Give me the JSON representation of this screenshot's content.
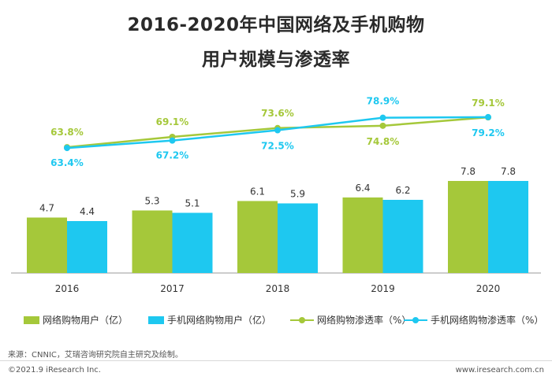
{
  "title_line1": "2016-2020年中国网络及手机购物",
  "title_line2": "用户规模与渗透率",
  "chart_data": {
    "type": "bar",
    "categories": [
      "2016",
      "2017",
      "2018",
      "2019",
      "2020"
    ],
    "series": [
      {
        "name": "网络购物用户（亿）",
        "kind": "bar",
        "color": "#a5c83a",
        "values": [
          4.7,
          5.3,
          6.1,
          6.4,
          7.8
        ],
        "labels": [
          "4.7",
          "5.3",
          "6.1",
          "6.4",
          "7.8"
        ]
      },
      {
        "name": "手机网络购物用户（亿）",
        "kind": "bar",
        "color": "#1ec8f0",
        "values": [
          4.4,
          5.1,
          5.9,
          6.2,
          7.8
        ],
        "labels": [
          "4.4",
          "5.1",
          "5.9",
          "6.2",
          "7.8"
        ]
      },
      {
        "name": "网络购物渗透率（%）",
        "kind": "line",
        "color": "#a5c83a",
        "values": [
          63.8,
          69.1,
          73.6,
          74.8,
          79.1
        ],
        "labels": [
          "63.8%",
          "69.1%",
          "73.6%",
          "74.8%",
          "79.1%"
        ]
      },
      {
        "name": "手机网络购物渗透率（%）",
        "kind": "line",
        "color": "#1ec8f0",
        "values": [
          63.4,
          67.2,
          72.5,
          78.9,
          79.2
        ],
        "labels": [
          "63.4%",
          "67.2%",
          "72.5%",
          "78.9%",
          "79.2%"
        ]
      }
    ],
    "legend_position": "bottom",
    "grid": false
  },
  "footer": {
    "source": "来源：CNNIC，艾瑞咨询研究院自主研究及绘制。",
    "copyright": "©2021.9 iResearch Inc.",
    "website": "www.iresearch.com.cn"
  }
}
